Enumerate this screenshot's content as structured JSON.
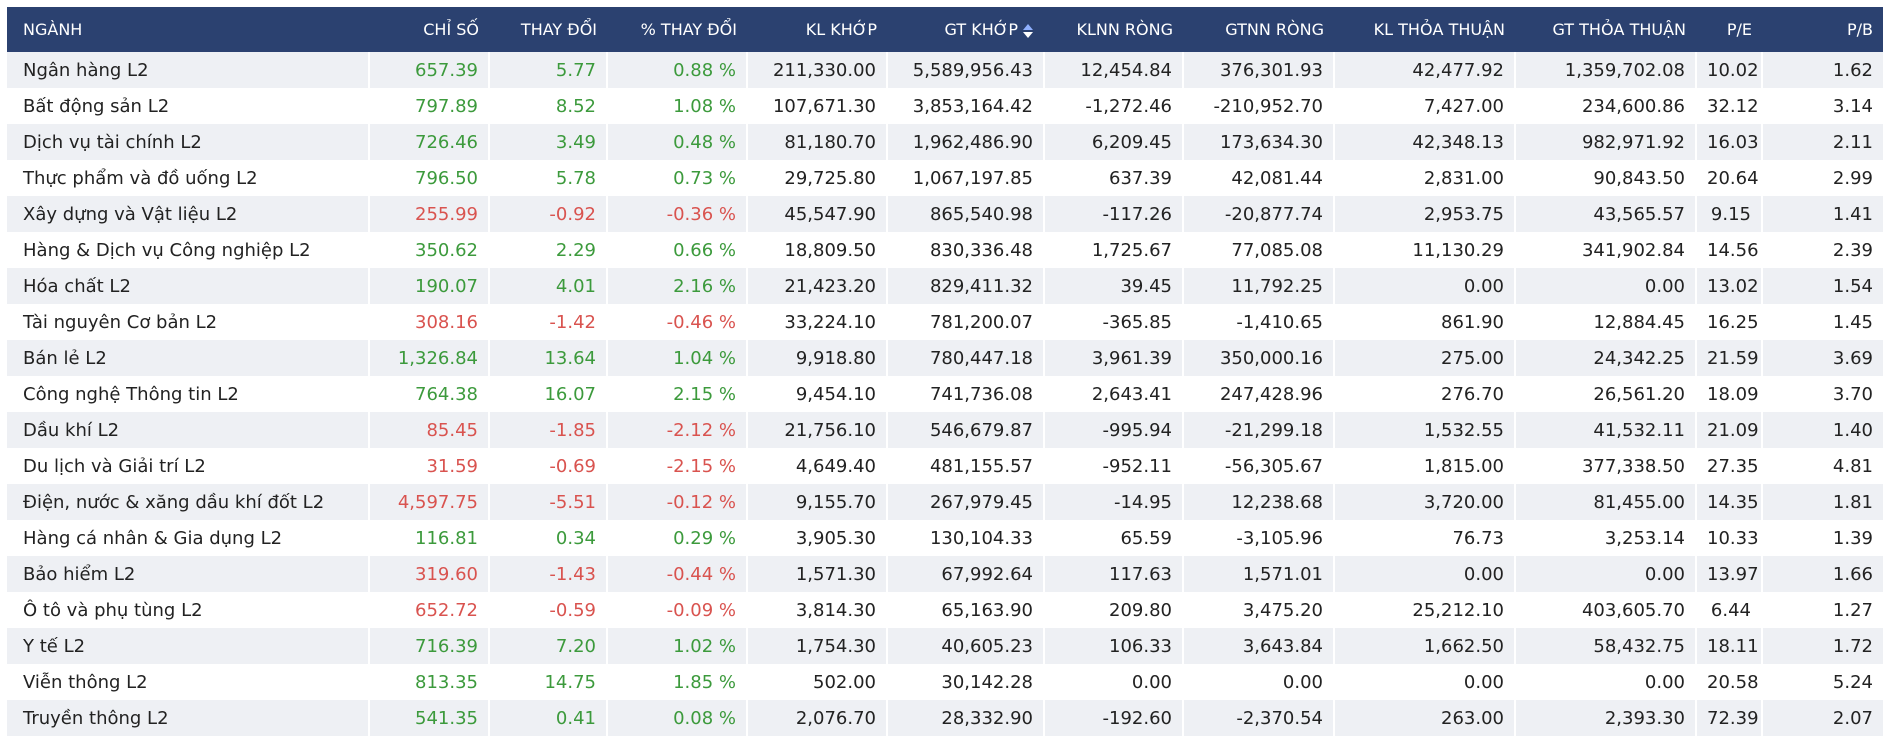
{
  "table": {
    "headers": [
      "NGÀNH",
      "CHỈ SỐ",
      "THAY ĐỔI",
      "% THAY ĐỔI",
      "KL KHỚP",
      "GT KHỚP",
      "KLNN RÒNG",
      "GTNN RÒNG",
      "KL THỎA THUẬN",
      "GT THỎA THUẬN",
      "P/E",
      "P/B"
    ],
    "rows": [
      [
        "Ngân hàng L2",
        "657.39",
        "5.77",
        "0.88 %",
        "211,330.00",
        "5,589,956.43",
        "12,454.84",
        "376,301.93",
        "42,477.92",
        "1,359,702.08",
        "10.02",
        "1.62"
      ],
      [
        "Bất động sản L2",
        "797.89",
        "8.52",
        "1.08 %",
        "107,671.30",
        "3,853,164.42",
        "-1,272.46",
        "-210,952.70",
        "7,427.00",
        "234,600.86",
        "32.12",
        "3.14"
      ],
      [
        "Dịch vụ tài chính L2",
        "726.46",
        "3.49",
        "0.48 %",
        "81,180.70",
        "1,962,486.90",
        "6,209.45",
        "173,634.30",
        "42,348.13",
        "982,971.92",
        "16.03",
        "2.11"
      ],
      [
        "Thực phẩm và đồ uống L2",
        "796.50",
        "5.78",
        "0.73 %",
        "29,725.80",
        "1,067,197.85",
        "637.39",
        "42,081.44",
        "2,831.00",
        "90,843.50",
        "20.64",
        "2.99"
      ],
      [
        "Xây dựng và Vật liệu L2",
        "255.99",
        "-0.92",
        "-0.36 %",
        "45,547.90",
        "865,540.98",
        "-117.26",
        "-20,877.74",
        "2,953.75",
        "43,565.57",
        "9.15",
        "1.41"
      ],
      [
        "Hàng & Dịch vụ Công nghiệp L2",
        "350.62",
        "2.29",
        "0.66 %",
        "18,809.50",
        "830,336.48",
        "1,725.67",
        "77,085.08",
        "11,130.29",
        "341,902.84",
        "14.56",
        "2.39"
      ],
      [
        "Hóa chất L2",
        "190.07",
        "4.01",
        "2.16 %",
        "21,423.20",
        "829,411.32",
        "39.45",
        "11,792.25",
        "0.00",
        "0.00",
        "13.02",
        "1.54"
      ],
      [
        "Tài nguyên Cơ bản L2",
        "308.16",
        "-1.42",
        "-0.46 %",
        "33,224.10",
        "781,200.07",
        "-365.85",
        "-1,410.65",
        "861.90",
        "12,884.45",
        "16.25",
        "1.45"
      ],
      [
        "Bán lẻ L2",
        "1,326.84",
        "13.64",
        "1.04 %",
        "9,918.80",
        "780,447.18",
        "3,961.39",
        "350,000.16",
        "275.00",
        "24,342.25",
        "21.59",
        "3.69"
      ],
      [
        "Công nghệ Thông tin L2",
        "764.38",
        "16.07",
        "2.15 %",
        "9,454.10",
        "741,736.08",
        "2,643.41",
        "247,428.96",
        "276.70",
        "26,561.20",
        "18.09",
        "3.70"
      ],
      [
        "Dầu khí L2",
        "85.45",
        "-1.85",
        "-2.12 %",
        "21,756.10",
        "546,679.87",
        "-995.94",
        "-21,299.18",
        "1,532.55",
        "41,532.11",
        "21.09",
        "1.40"
      ],
      [
        "Du lịch và Giải trí L2",
        "31.59",
        "-0.69",
        "-2.15 %",
        "4,649.40",
        "481,155.57",
        "-952.11",
        "-56,305.67",
        "1,815.00",
        "377,338.50",
        "27.35",
        "4.81"
      ],
      [
        "Điện, nước & xăng dầu khí đốt L2",
        "4,597.75",
        "-5.51",
        "-0.12 %",
        "9,155.70",
        "267,979.45",
        "-14.95",
        "12,238.68",
        "3,720.00",
        "81,455.00",
        "14.35",
        "1.81"
      ],
      [
        "Hàng cá nhân & Gia dụng L2",
        "116.81",
        "0.34",
        "0.29 %",
        "3,905.30",
        "130,104.33",
        "65.59",
        "-3,105.96",
        "76.73",
        "3,253.14",
        "10.33",
        "1.39"
      ],
      [
        "Bảo hiểm L2",
        "319.60",
        "-1.43",
        "-0.44 %",
        "1,571.30",
        "67,992.64",
        "117.63",
        "1,571.01",
        "0.00",
        "0.00",
        "13.97",
        "1.66"
      ],
      [
        "Ô tô và phụ tùng L2",
        "652.72",
        "-0.59",
        "-0.09 %",
        "3,814.30",
        "65,163.90",
        "209.80",
        "3,475.20",
        "25,212.10",
        "403,605.70",
        "6.44",
        "1.27"
      ],
      [
        "Y tế L2",
        "716.39",
        "7.20",
        "1.02 %",
        "1,754.30",
        "40,605.23",
        "106.33",
        "3,643.84",
        "1,662.50",
        "58,432.75",
        "18.11",
        "1.72"
      ],
      [
        "Viễn thông L2",
        "813.35",
        "14.75",
        "1.85 %",
        "502.00",
        "30,142.28",
        "0.00",
        "0.00",
        "0.00",
        "0.00",
        "20.58",
        "5.24"
      ],
      [
        "Truyền thông L2",
        "541.35",
        "0.41",
        "0.08 %",
        "2,076.70",
        "28,332.90",
        "-192.60",
        "-2,370.54",
        "263.00",
        "2,393.30",
        "72.39",
        "2.07"
      ]
    ]
  }
}
